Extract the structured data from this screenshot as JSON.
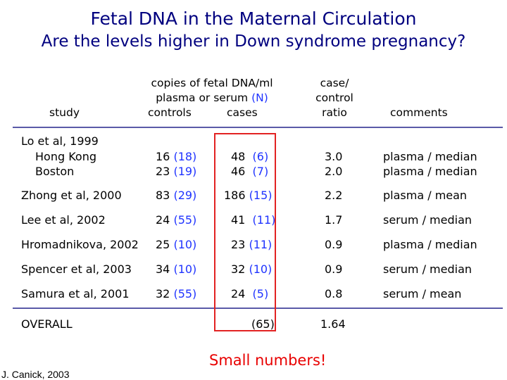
{
  "title": "Fetal DNA in the Maternal Circulation",
  "subtitle": "Are the levels higher in Down syndrome pregnancy?",
  "header": {
    "study": "study",
    "copies_line1": "copies of fetal DNA/ml",
    "copies_line2_prefix": "plasma or serum ",
    "copies_line2_n": "(N)",
    "controls": "controls",
    "cases": "cases",
    "ratio_line1": "case/",
    "ratio_line2": "control",
    "ratio_line3": "ratio",
    "comments": "comments"
  },
  "rows": [
    {
      "study": "Lo et al, 1999",
      "sub_a": "Hong Kong",
      "sub_b": "Boston",
      "ctrl_a": "16",
      "ctrl_a_n": "(18)",
      "ctrl_b": "23",
      "ctrl_b_n": "(19)",
      "case_a": "48",
      "case_a_n": "(6)",
      "case_b": "46",
      "case_b_n": "(7)",
      "ratio_a": "3.0",
      "ratio_b": "2.0",
      "comment_a": "plasma / median",
      "comment_b": "plasma / median"
    },
    {
      "study": "Zhong et al, 2000",
      "ctrl": "83",
      "ctrl_n": "(29)",
      "case": "186",
      "case_n": "(15)",
      "ratio": "2.2",
      "comment": "plasma / mean"
    },
    {
      "study": "Lee et al, 2002",
      "ctrl": "24",
      "ctrl_n": "(55)",
      "case": "41",
      "case_n": "(11)",
      "ratio": "1.7",
      "comment": "serum / median"
    },
    {
      "study": "Hromadnikova, 2002",
      "ctrl": "25",
      "ctrl_n": "(10)",
      "case": "23",
      "case_n": "(11)",
      "ratio": "0.9",
      "comment": "plasma / median"
    },
    {
      "study": "Spencer et al, 2003",
      "ctrl": "34",
      "ctrl_n": "(10)",
      "case": "32",
      "case_n": "(10)",
      "ratio": "0.9",
      "comment": "serum / median"
    },
    {
      "study": "Samura et al, 2001",
      "ctrl": "32",
      "ctrl_n": "(55)",
      "case": "24",
      "case_n": "(5)",
      "ratio": "0.8",
      "comment": "serum / mean"
    }
  ],
  "overall": {
    "label": "OVERALL",
    "case_n": "(65)",
    "ratio": "1.64"
  },
  "note": "Small numbers!",
  "credit": "J. Canick, 2003",
  "colors": {
    "title": "#00007f",
    "n_values": "#1f33ff",
    "highlight_box": "#e22222",
    "note": "#e80000",
    "rule": "#5a5aa8"
  }
}
